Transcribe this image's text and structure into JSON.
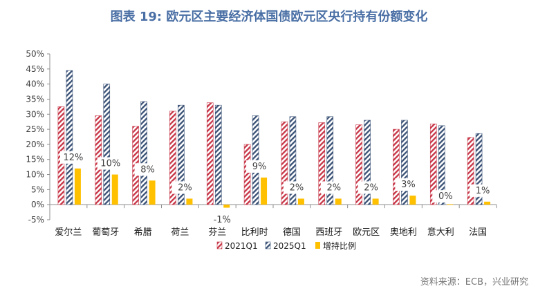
{
  "title": "图表 19: 欧元区主要经济体国债欧元区央行持有份额变化",
  "source": "资料来源：ECB，兴业研究",
  "chart_data": {
    "type": "bar",
    "categories": [
      "爱尔兰",
      "葡萄牙",
      "希腊",
      "荷兰",
      "芬兰",
      "比利时",
      "德国",
      "西班牙",
      "欧元区",
      "奥地利",
      "意大利",
      "法国"
    ],
    "series": [
      {
        "name": "2021Q1",
        "values": [
          32.5,
          29.5,
          26.0,
          31.0,
          33.8,
          20.0,
          27.5,
          27.2,
          26.5,
          25.0,
          26.8,
          22.3
        ],
        "color": "#c8394a",
        "pattern": "diagonal-stripes"
      },
      {
        "name": "2025Q1",
        "values": [
          44.5,
          40.0,
          34.2,
          33.0,
          33.0,
          29.5,
          29.2,
          29.2,
          28.0,
          28.0,
          26.2,
          23.6
        ],
        "color": "#3d5478",
        "pattern": "diagonal-stripes"
      },
      {
        "name": "增持比例",
        "values": [
          12,
          10,
          8,
          2,
          -1,
          9,
          2,
          2,
          2,
          3,
          0,
          1
        ],
        "color": "#ffc000",
        "pattern": "solid"
      }
    ],
    "data_labels": [
      "12%",
      "10%",
      "8%",
      "2%",
      "-1%",
      "9%",
      "2%",
      "2%",
      "2%",
      "3%",
      "0%",
      "1%"
    ],
    "yticks": [
      "50%",
      "45%",
      "40%",
      "35%",
      "30%",
      "25%",
      "20%",
      "15%",
      "10%",
      "5%",
      "0%",
      "-5%"
    ],
    "ylim": [
      -5,
      50
    ],
    "grid": false,
    "legend_position": "bottom"
  }
}
